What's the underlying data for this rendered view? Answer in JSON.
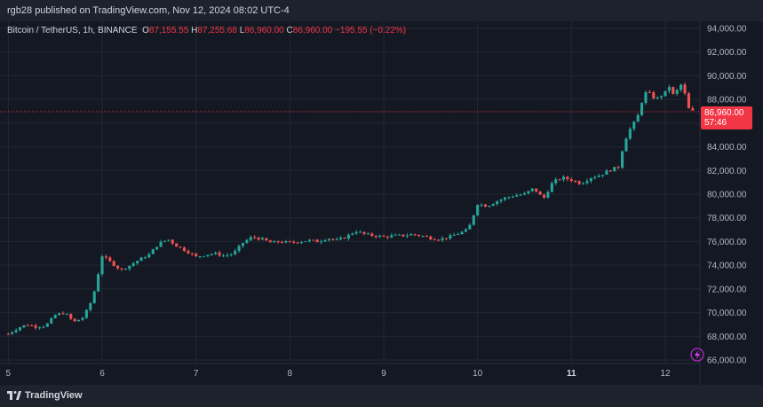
{
  "header": {
    "published": "rgb28 published on TradingView.com, Nov 12, 2024 08:02 UTC-4"
  },
  "legend": {
    "symbol": "Bitcoin / TetherUS, 1h, BINANCE",
    "open_label": "O",
    "open": "87,155.55",
    "high_label": "H",
    "high": "87,255.68",
    "low_label": "L",
    "low": "86,960.00",
    "close_label": "C",
    "close": "86,960.00",
    "change": "−195.55 (−0.22%)"
  },
  "price_tag": {
    "price": "86,960.00",
    "countdown": "57:46",
    "color": "#f23645"
  },
  "footer": {
    "brand": "TradingView"
  },
  "colors": {
    "up": "#26a69a",
    "down": "#ef5350",
    "background": "#141823",
    "grid": "#232733",
    "text": "#b2b5be"
  },
  "chart_data": {
    "type": "candlestick",
    "yticks": [
      "94,000.00",
      "92,000.00",
      "90,000.00",
      "88,000.00",
      "86,000.00",
      "84,000.00",
      "82,000.00",
      "80,000.00",
      "78,000.00",
      "76,000.00",
      "74,000.00",
      "72,000.00",
      "70,000.00",
      "68,000.00",
      "66,000.00"
    ],
    "ylim": [
      65000,
      95000
    ],
    "xticks": [
      {
        "label": "5",
        "day": 5
      },
      {
        "label": "6",
        "day": 6
      },
      {
        "label": "7",
        "day": 7
      },
      {
        "label": "8",
        "day": 8
      },
      {
        "label": "9",
        "day": 9
      },
      {
        "label": "10",
        "day": 10
      },
      {
        "label": "11",
        "day": 11,
        "bold": true
      },
      {
        "label": "12",
        "day": 12
      }
    ],
    "current_price": 86960,
    "series": [
      {
        "day": 5.0,
        "close": 68200
      },
      {
        "day": 5.1,
        "close": 68700
      },
      {
        "day": 5.2,
        "close": 69000
      },
      {
        "day": 5.3,
        "close": 68800
      },
      {
        "day": 5.4,
        "close": 68900
      },
      {
        "day": 5.5,
        "close": 69800
      },
      {
        "day": 5.6,
        "close": 70000
      },
      {
        "day": 5.7,
        "close": 69200
      },
      {
        "day": 5.8,
        "close": 69600
      },
      {
        "day": 5.9,
        "close": 71200
      },
      {
        "day": 5.95,
        "close": 73000
      },
      {
        "day": 6.0,
        "close": 74800
      },
      {
        "day": 6.1,
        "close": 74200
      },
      {
        "day": 6.2,
        "close": 73600
      },
      {
        "day": 6.3,
        "close": 74000
      },
      {
        "day": 6.4,
        "close": 74500
      },
      {
        "day": 6.5,
        "close": 74900
      },
      {
        "day": 6.6,
        "close": 75800
      },
      {
        "day": 6.7,
        "close": 76200
      },
      {
        "day": 6.8,
        "close": 75600
      },
      {
        "day": 6.9,
        "close": 75200
      },
      {
        "day": 7.0,
        "close": 74700
      },
      {
        "day": 7.1,
        "close": 74900
      },
      {
        "day": 7.2,
        "close": 75000
      },
      {
        "day": 7.3,
        "close": 74800
      },
      {
        "day": 7.4,
        "close": 75000
      },
      {
        "day": 7.5,
        "close": 75900
      },
      {
        "day": 7.6,
        "close": 76400
      },
      {
        "day": 7.7,
        "close": 76200
      },
      {
        "day": 7.8,
        "close": 75900
      },
      {
        "day": 7.9,
        "close": 76000
      },
      {
        "day": 8.0,
        "close": 75900
      },
      {
        "day": 8.1,
        "close": 76000
      },
      {
        "day": 8.2,
        "close": 76100
      },
      {
        "day": 8.3,
        "close": 76000
      },
      {
        "day": 8.4,
        "close": 76300
      },
      {
        "day": 8.5,
        "close": 76100
      },
      {
        "day": 8.6,
        "close": 76400
      },
      {
        "day": 8.7,
        "close": 76900
      },
      {
        "day": 8.8,
        "close": 76600
      },
      {
        "day": 8.9,
        "close": 76500
      },
      {
        "day": 9.0,
        "close": 76400
      },
      {
        "day": 9.1,
        "close": 76500
      },
      {
        "day": 9.2,
        "close": 76500
      },
      {
        "day": 9.3,
        "close": 76600
      },
      {
        "day": 9.4,
        "close": 76500
      },
      {
        "day": 9.5,
        "close": 76300
      },
      {
        "day": 9.6,
        "close": 76200
      },
      {
        "day": 9.7,
        "close": 76400
      },
      {
        "day": 9.8,
        "close": 76700
      },
      {
        "day": 9.9,
        "close": 77000
      },
      {
        "day": 10.0,
        "close": 79200
      },
      {
        "day": 10.1,
        "close": 79000
      },
      {
        "day": 10.2,
        "close": 79400
      },
      {
        "day": 10.3,
        "close": 79700
      },
      {
        "day": 10.4,
        "close": 79900
      },
      {
        "day": 10.5,
        "close": 80000
      },
      {
        "day": 10.6,
        "close": 80500
      },
      {
        "day": 10.7,
        "close": 79600
      },
      {
        "day": 10.8,
        "close": 81000
      },
      {
        "day": 10.9,
        "close": 81400
      },
      {
        "day": 11.0,
        "close": 81200
      },
      {
        "day": 11.1,
        "close": 80900
      },
      {
        "day": 11.2,
        "close": 81400
      },
      {
        "day": 11.3,
        "close": 81600
      },
      {
        "day": 11.4,
        "close": 82000
      },
      {
        "day": 11.5,
        "close": 82300
      },
      {
        "day": 11.55,
        "close": 84000
      },
      {
        "day": 11.6,
        "close": 85200
      },
      {
        "day": 11.7,
        "close": 86400
      },
      {
        "day": 11.75,
        "close": 87800
      },
      {
        "day": 11.8,
        "close": 88700
      },
      {
        "day": 11.9,
        "close": 88000
      },
      {
        "day": 12.0,
        "close": 88600
      },
      {
        "day": 12.05,
        "close": 89200
      },
      {
        "day": 12.1,
        "close": 88000
      },
      {
        "day": 12.15,
        "close": 89500
      },
      {
        "day": 12.2,
        "close": 88700
      },
      {
        "day": 12.25,
        "close": 87200
      },
      {
        "day": 12.3,
        "close": 86960
      }
    ]
  }
}
